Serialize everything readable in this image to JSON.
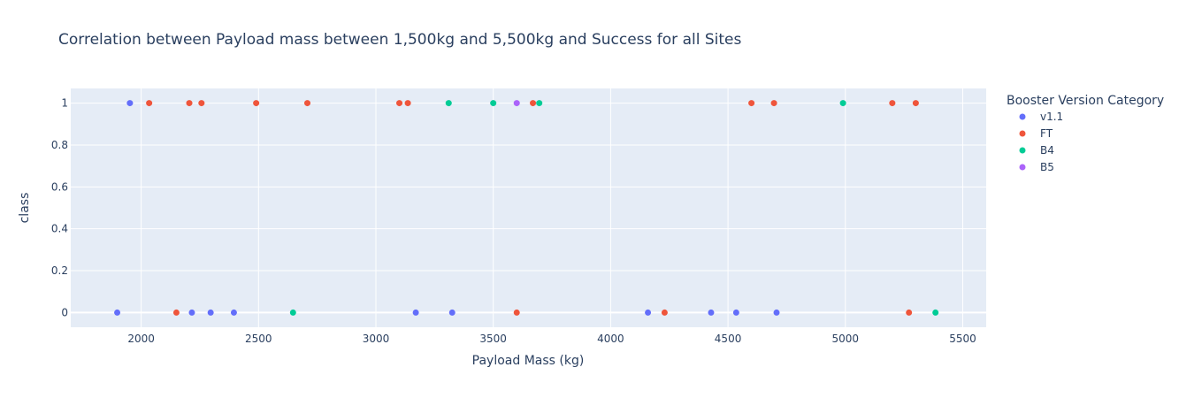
{
  "chart_data": {
    "type": "scatter",
    "title": "Correlation between Payload mass between   1,500kg and   5,500kg and Success for all Sites",
    "xlabel": "Payload Mass (kg)",
    "ylabel": "class",
    "xlim": [
      1700,
      5600
    ],
    "ylim": [
      -0.07,
      1.07
    ],
    "x_ticks": [
      2000,
      2500,
      3000,
      3500,
      4000,
      4500,
      5000,
      5500
    ],
    "y_ticks": [
      0,
      0.2,
      0.4,
      0.6,
      0.8,
      1
    ],
    "x_tick_labels": [
      "2000",
      "2500",
      "3000",
      "3500",
      "4000",
      "4500",
      "5000",
      "5500"
    ],
    "y_tick_labels": [
      "0",
      "0.2",
      "0.4",
      "0.6",
      "0.8",
      "1"
    ],
    "grid": true,
    "legend_position": "right",
    "legend_title": "Booster Version Category",
    "background_color": "#e5ecf6",
    "series": [
      {
        "name": "v1.1",
        "color": "#636efa",
        "points": [
          {
            "x": 1952,
            "y": 1
          },
          {
            "x": 1898,
            "y": 0
          },
          {
            "x": 2216,
            "y": 0
          },
          {
            "x": 2296,
            "y": 0
          },
          {
            "x": 2395,
            "y": 0
          },
          {
            "x": 3170,
            "y": 0
          },
          {
            "x": 3325,
            "y": 0
          },
          {
            "x": 4159,
            "y": 0
          },
          {
            "x": 4428,
            "y": 0
          },
          {
            "x": 4535,
            "y": 0
          },
          {
            "x": 4707,
            "y": 0
          }
        ]
      },
      {
        "name": "FT",
        "color": "#ef553b",
        "points": [
          {
            "x": 2034,
            "y": 1
          },
          {
            "x": 2205,
            "y": 1
          },
          {
            "x": 2257,
            "y": 1
          },
          {
            "x": 2490,
            "y": 1
          },
          {
            "x": 2708,
            "y": 1
          },
          {
            "x": 3100,
            "y": 1
          },
          {
            "x": 3136,
            "y": 1
          },
          {
            "x": 3669,
            "y": 1
          },
          {
            "x": 4600,
            "y": 1
          },
          {
            "x": 4696,
            "y": 1
          },
          {
            "x": 5200,
            "y": 1
          },
          {
            "x": 5300,
            "y": 1
          },
          {
            "x": 2150,
            "y": 0
          },
          {
            "x": 3600,
            "y": 0
          },
          {
            "x": 4230,
            "y": 0
          },
          {
            "x": 5271,
            "y": 0
          }
        ]
      },
      {
        "name": "B4",
        "color": "#00cc96",
        "points": [
          {
            "x": 3310,
            "y": 1
          },
          {
            "x": 3500,
            "y": 1
          },
          {
            "x": 3696,
            "y": 1
          },
          {
            "x": 4990,
            "y": 1
          },
          {
            "x": 2647,
            "y": 0
          },
          {
            "x": 5384,
            "y": 0
          }
        ]
      },
      {
        "name": "B5",
        "color": "#ab63fa",
        "points": [
          {
            "x": 3600,
            "y": 1
          }
        ]
      }
    ]
  }
}
